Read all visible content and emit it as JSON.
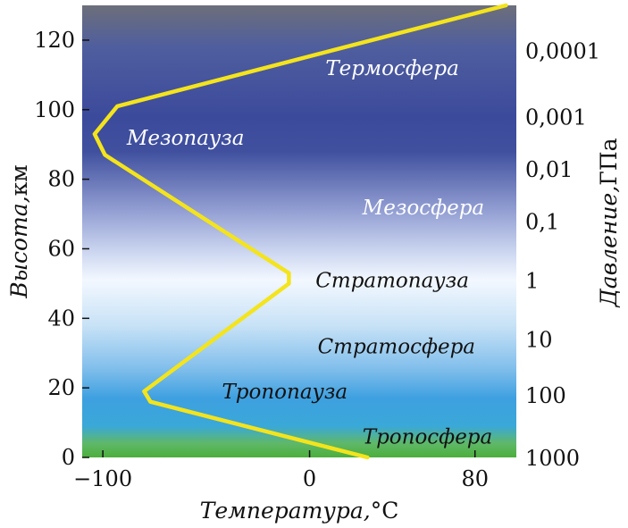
{
  "chart_data": {
    "type": "line",
    "xlabel": "Температура,",
    "xlabel_unit": "°C",
    "ylabel": "Высота,",
    "ylabel_unit": "км",
    "y2label": "Давление,",
    "y2label_unit": "ГПа",
    "xlim": [
      -110,
      100
    ],
    "ylim": [
      0,
      130
    ],
    "x_ticks": [
      {
        "value": -100,
        "label": "−100"
      },
      {
        "value": 0,
        "label": "0"
      },
      {
        "value": 80,
        "label": "80"
      }
    ],
    "y_ticks": [
      {
        "value": 0,
        "label": "0"
      },
      {
        "value": 20,
        "label": "20"
      },
      {
        "value": 40,
        "label": "40"
      },
      {
        "value": 60,
        "label": "60"
      },
      {
        "value": 80,
        "label": "80"
      },
      {
        "value": 100,
        "label": "100"
      },
      {
        "value": 120,
        "label": "120"
      }
    ],
    "pressure_ticks": [
      {
        "altitude": 0,
        "label": "1000"
      },
      {
        "altitude": 18,
        "label": "100"
      },
      {
        "altitude": 34,
        "label": "10"
      },
      {
        "altitude": 51,
        "label": "1"
      },
      {
        "altitude": 68,
        "label": "0,1"
      },
      {
        "altitude": 83,
        "label": "0,01"
      },
      {
        "altitude": 98,
        "label": "0,001"
      },
      {
        "altitude": 117,
        "label": "0,0001"
      }
    ],
    "series": [
      {
        "color": "#f4e41c",
        "points": [
          {
            "x": 28,
            "y": 0
          },
          {
            "x": -77,
            "y": 16
          },
          {
            "x": -80,
            "y": 19
          },
          {
            "x": -10,
            "y": 50
          },
          {
            "x": -10,
            "y": 53
          },
          {
            "x": -99,
            "y": 87
          },
          {
            "x": -104,
            "y": 93
          },
          {
            "x": -93,
            "y": 101
          },
          {
            "x": 95,
            "y": 130
          }
        ]
      }
    ],
    "annotations": [
      {
        "text": "Термосфера",
        "x": 40,
        "y": 112,
        "color": "#ffffff"
      },
      {
        "text": "Мезопауза",
        "x": -60,
        "y": 92,
        "color": "#ffffff"
      },
      {
        "text": "Мезосфера",
        "x": 55,
        "y": 72,
        "color": "#ffffff"
      },
      {
        "text": "Стратопауза",
        "x": 40,
        "y": 51,
        "color": "#111111"
      },
      {
        "text": "Стратосфера",
        "x": 42,
        "y": 32,
        "color": "#111111"
      },
      {
        "text": "Тропопауза",
        "x": -12,
        "y": 19,
        "color": "#111111"
      },
      {
        "text": "Тропосфера",
        "x": 57,
        "y": 6,
        "color": "#111111"
      }
    ],
    "background_gradient": [
      {
        "altitude": 130,
        "color": "#6d6f7a"
      },
      {
        "altitude": 118,
        "color": "#4f5e9e"
      },
      {
        "altitude": 98,
        "color": "#3c4a9c"
      },
      {
        "altitude": 88,
        "color": "#40509e"
      },
      {
        "altitude": 72,
        "color": "#8e9ad0"
      },
      {
        "altitude": 60,
        "color": "#c7d2ee"
      },
      {
        "altitude": 51,
        "color": "#f3f8ff"
      },
      {
        "altitude": 38,
        "color": "#c8e2f6"
      },
      {
        "altitude": 26,
        "color": "#84c0ec"
      },
      {
        "altitude": 17,
        "color": "#3ea0e0"
      },
      {
        "altitude": 9,
        "color": "#3aa8d8"
      },
      {
        "altitude": 4,
        "color": "#5fb868"
      },
      {
        "altitude": 0,
        "color": "#4caf3c"
      }
    ],
    "grid": false
  }
}
